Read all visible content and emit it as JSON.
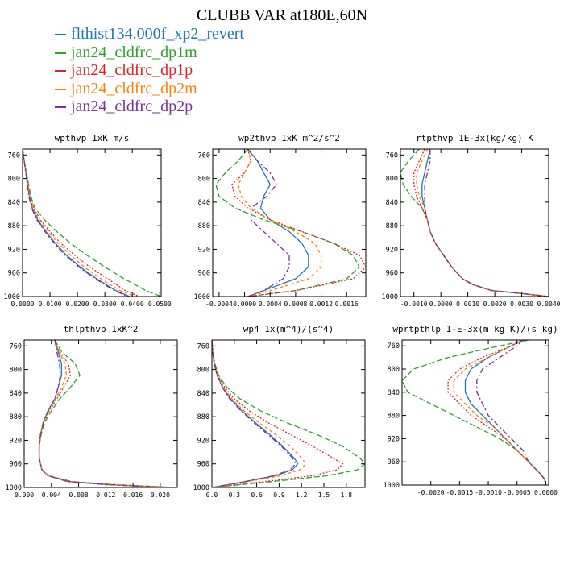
{
  "figure": {
    "title": "CLUBB VAR at180E,60N",
    "legend": [
      {
        "label": "flthist134.000f_xp2_revert",
        "color": "#1f77b4"
      },
      {
        "label": "jan24_cldfrc_dp1m",
        "color": "#2ca02c"
      },
      {
        "label": "jan24_cldfrc_dp1p",
        "color": "#d62728"
      },
      {
        "label": "jan24_cldfrc_dp2m",
        "color": "#ff7f0e"
      },
      {
        "label": "jan24_cldfrc_dp2p",
        "color": "#7b3294"
      }
    ]
  },
  "chart_data": [
    {
      "type": "line",
      "title": "wpthvp  1xK m/s",
      "xlim": [
        0,
        0.0505
      ],
      "ylim": [
        1000,
        750
      ],
      "xticks": [
        0,
        0.01,
        0.02,
        0.03,
        0.04,
        0.05
      ],
      "xtick_labels": [
        "0.0000",
        "0.0100",
        "0.0200",
        "0.0300",
        "0.0400",
        "0.0500"
      ],
      "yticks": [
        760,
        800,
        840,
        880,
        920,
        960,
        1000
      ],
      "ytick_labels": [
        "760",
        "800",
        "840",
        "880",
        "920",
        "960",
        "1000"
      ],
      "y": [
        750,
        770,
        790,
        810,
        830,
        850,
        870,
        890,
        910,
        930,
        950,
        970,
        990,
        1000
      ],
      "series": [
        {
          "values": [
            0,
            0.0006,
            0.0012,
            0.0018,
            0.0025,
            0.0035,
            0.0055,
            0.0085,
            0.012,
            0.016,
            0.021,
            0.027,
            0.034,
            0.039
          ]
        },
        {
          "values": [
            0,
            0.0006,
            0.0014,
            0.0022,
            0.003,
            0.0045,
            0.008,
            0.0125,
            0.0175,
            0.0235,
            0.03,
            0.037,
            0.045,
            0.0505
          ]
        },
        {
          "values": [
            0,
            0.0006,
            0.0013,
            0.002,
            0.0027,
            0.004,
            0.0065,
            0.01,
            0.014,
            0.019,
            0.0245,
            0.031,
            0.0375,
            0.0425
          ]
        },
        {
          "values": [
            0,
            0.0006,
            0.0013,
            0.0019,
            0.0026,
            0.0037,
            0.006,
            0.0093,
            0.013,
            0.0175,
            0.0225,
            0.0285,
            0.0355,
            0.041
          ]
        },
        {
          "values": [
            0,
            0.0006,
            0.0012,
            0.0017,
            0.0023,
            0.0033,
            0.0052,
            0.0082,
            0.0116,
            0.0155,
            0.0205,
            0.0265,
            0.0335,
            0.0385
          ]
        }
      ]
    },
    {
      "type": "line",
      "title": "wp2thvp  1xK m^2/s^2",
      "xlim": [
        -0.0005,
        0.0019
      ],
      "ylim": [
        1000,
        750
      ],
      "xticks": [
        -0.0004,
        0,
        0.0004,
        0.0008,
        0.0012,
        0.0016
      ],
      "xtick_labels": [
        "-0.0004",
        "0.0000",
        "0.0004",
        "0.0008",
        "0.0012",
        "0.0016"
      ],
      "yticks": [
        760,
        800,
        840,
        880,
        920,
        960,
        1000
      ],
      "ytick_labels": [
        "760",
        "800",
        "840",
        "880",
        "920",
        "960",
        "1000"
      ],
      "y": [
        750,
        770,
        790,
        810,
        830,
        850,
        870,
        890,
        910,
        930,
        950,
        970,
        990,
        1000
      ],
      "series": [
        {
          "values": [
            5e-05,
            0.0002,
            0.0003,
            0.0004,
            0.0003,
            0.00025,
            0.0004,
            0.0007,
            0.0009,
            0.001,
            0.001,
            0.0008,
            0.0003,
            5e-05
          ]
        },
        {
          "values": [
            5e-05,
            -0.0001,
            -0.0003,
            -0.00045,
            -0.0004,
            -0.00015,
            0.0003,
            0.0009,
            0.0014,
            0.0017,
            0.0018,
            0.0016,
            0.0008,
            5e-05
          ]
        },
        {
          "values": [
            5e-05,
            0.0001,
            0.0,
            -0.0002,
            -0.00015,
            5e-05,
            0.0004,
            0.0009,
            0.0014,
            0.0018,
            0.0019,
            0.0017,
            0.0008,
            5e-05
          ]
        },
        {
          "values": [
            5e-05,
            0.0001,
            0.0,
            -0.0001,
            -5e-05,
            0.0001,
            0.0004,
            0.0008,
            0.0011,
            0.0012,
            0.0012,
            0.001,
            0.0004,
            5e-05
          ]
        },
        {
          "values": [
            5e-05,
            0.0002,
            0.0004,
            0.0005,
            0.00035,
            0.0001,
            0.0001,
            0.0003,
            0.0005,
            0.0007,
            0.0007,
            0.0006,
            0.0003,
            5e-05
          ]
        }
      ]
    },
    {
      "type": "line",
      "title": "rtpthvp  1E-3x(kg/kg) K",
      "xlim": [
        -0.0015,
        0.004
      ],
      "ylim": [
        1000,
        750
      ],
      "xticks": [
        -0.001,
        0,
        0.001,
        0.002,
        0.003,
        0.004
      ],
      "xtick_labels": [
        "-0.0010",
        "0.0000",
        "0.0010",
        "0.0020",
        "0.0030",
        "0.0040"
      ],
      "yticks": [
        760,
        800,
        840,
        880,
        920,
        960,
        1000
      ],
      "ytick_labels": [
        "760",
        "800",
        "840",
        "880",
        "920",
        "960",
        "1000"
      ],
      "y": [
        750,
        770,
        790,
        810,
        830,
        850,
        870,
        890,
        910,
        930,
        950,
        970,
        980,
        990,
        995,
        1000
      ],
      "series": [
        {
          "values": [
            -0.0004,
            -0.0005,
            -0.0006,
            -0.0007,
            -0.0007,
            -0.0006,
            -0.0005,
            -0.0004,
            -0.0002,
            0.0001,
            0.0004,
            0.0008,
            0.0012,
            0.0019,
            0.003,
            0.004
          ]
        },
        {
          "values": [
            -0.0008,
            -0.0012,
            -0.0015,
            -0.0014,
            -0.0011,
            -0.0007,
            -0.0005,
            -0.0004,
            -0.0002,
            0.0001,
            0.0004,
            0.0008,
            0.0012,
            0.0019,
            0.003,
            0.004
          ]
        },
        {
          "values": [
            -0.0006,
            -0.0008,
            -0.001,
            -0.001,
            -0.0009,
            -0.0007,
            -0.0005,
            -0.0004,
            -0.0002,
            0.0001,
            0.0004,
            0.0008,
            0.0012,
            0.0019,
            0.003,
            0.004
          ]
        },
        {
          "values": [
            -0.0005,
            -0.0007,
            -0.0009,
            -0.0009,
            -0.0008,
            -0.0006,
            -0.0005,
            -0.0004,
            -0.0002,
            0.0001,
            0.0004,
            0.0008,
            0.0012,
            0.0019,
            0.003,
            0.004
          ]
        },
        {
          "values": [
            -0.0004,
            -0.0004,
            -0.0005,
            -0.0006,
            -0.0006,
            -0.0006,
            -0.0005,
            -0.0004,
            -0.0002,
            0.0001,
            0.0004,
            0.0008,
            0.0012,
            0.0019,
            0.003,
            0.004
          ]
        }
      ]
    },
    {
      "type": "line",
      "title": "thlpthvp  1xK^2",
      "xlim": [
        0,
        0.0225
      ],
      "ylim": [
        1000,
        750
      ],
      "xticks": [
        0,
        0.004,
        0.008,
        0.012,
        0.016,
        0.02
      ],
      "xtick_labels": [
        "0.000",
        "0.004",
        "0.008",
        "0.012",
        "0.016",
        "0.020"
      ],
      "yticks": [
        760,
        800,
        840,
        880,
        920,
        960,
        1000
      ],
      "ytick_labels": [
        "760",
        "800",
        "840",
        "880",
        "920",
        "960",
        "1000"
      ],
      "y": [
        750,
        770,
        790,
        810,
        830,
        850,
        870,
        890,
        910,
        930,
        950,
        970,
        980,
        990,
        995,
        1000
      ],
      "series": [
        {
          "values": [
            0.0045,
            0.005,
            0.0055,
            0.0055,
            0.005,
            0.0045,
            0.0035,
            0.0028,
            0.0024,
            0.0022,
            0.0022,
            0.0026,
            0.0035,
            0.0065,
            0.012,
            0.021
          ]
        },
        {
          "values": [
            0.0045,
            0.0055,
            0.0075,
            0.0082,
            0.0068,
            0.0052,
            0.004,
            0.003,
            0.0025,
            0.0022,
            0.0022,
            0.0026,
            0.0035,
            0.007,
            0.013,
            0.022
          ]
        },
        {
          "values": [
            0.0045,
            0.0052,
            0.0065,
            0.0068,
            0.0058,
            0.0048,
            0.0037,
            0.0029,
            0.0024,
            0.0022,
            0.0022,
            0.0026,
            0.0035,
            0.007,
            0.0125,
            0.0215
          ]
        },
        {
          "values": [
            0.0045,
            0.0051,
            0.006,
            0.0062,
            0.0055,
            0.0046,
            0.0036,
            0.0028,
            0.0024,
            0.0022,
            0.0022,
            0.0026,
            0.0035,
            0.0066,
            0.0122,
            0.0212
          ]
        },
        {
          "values": [
            0.0045,
            0.0048,
            0.0052,
            0.0053,
            0.005,
            0.0045,
            0.0035,
            0.0028,
            0.0024,
            0.0022,
            0.0022,
            0.0026,
            0.0035,
            0.0064,
            0.0118,
            0.0208
          ]
        }
      ]
    },
    {
      "type": "line",
      "title": "wp4  1x(m^4)/(s^4)",
      "xlim": [
        0,
        2.05
      ],
      "ylim": [
        1000,
        750
      ],
      "xticks": [
        0,
        0.3,
        0.6,
        0.9,
        1.2,
        1.5,
        1.8
      ],
      "xtick_labels": [
        "0.0",
        "0.3",
        "0.6",
        "0.9",
        "1.2",
        "1.5",
        "1.8"
      ],
      "yticks": [
        760,
        800,
        840,
        880,
        920,
        960,
        1000
      ],
      "ytick_labels": [
        "760",
        "800",
        "840",
        "880",
        "920",
        "960",
        "1000"
      ],
      "y": [
        750,
        770,
        790,
        810,
        830,
        850,
        870,
        890,
        910,
        930,
        950,
        960,
        970,
        980,
        990,
        1000
      ],
      "series": [
        {
          "values": [
            0.0,
            0.01,
            0.03,
            0.07,
            0.14,
            0.25,
            0.4,
            0.58,
            0.77,
            0.95,
            1.1,
            1.15,
            1.08,
            0.85,
            0.45,
            0.0
          ]
        },
        {
          "values": [
            0.0,
            0.01,
            0.04,
            0.09,
            0.2,
            0.38,
            0.65,
            1.0,
            1.4,
            1.75,
            1.98,
            2.05,
            1.95,
            1.55,
            0.8,
            0.0
          ]
        },
        {
          "values": [
            0.0,
            0.01,
            0.035,
            0.08,
            0.17,
            0.3,
            0.5,
            0.75,
            1.05,
            1.35,
            1.62,
            1.75,
            1.68,
            1.35,
            0.7,
            0.0
          ]
        },
        {
          "values": [
            0.0,
            0.01,
            0.03,
            0.075,
            0.15,
            0.27,
            0.43,
            0.63,
            0.85,
            1.05,
            1.2,
            1.26,
            1.18,
            0.92,
            0.48,
            0.0
          ]
        },
        {
          "values": [
            0.0,
            0.01,
            0.03,
            0.07,
            0.14,
            0.24,
            0.39,
            0.56,
            0.75,
            0.93,
            1.08,
            1.12,
            1.05,
            0.83,
            0.44,
            0.0
          ]
        }
      ]
    },
    {
      "type": "line",
      "title": "wprtpthlp  1-E-3x(m kg K)/(s kg)",
      "xlim": [
        -0.0025,
        5e-05
      ],
      "ylim": [
        1000,
        750
      ],
      "xticks": [
        -0.002,
        -0.0015,
        -0.001,
        -0.0005,
        0
      ],
      "xtick_labels": [
        "-0.0020",
        "-0.0015",
        "-0.0010",
        "-0.0005",
        "0.0000"
      ],
      "yticks": [
        760,
        800,
        840,
        880,
        920,
        960,
        1000
      ],
      "ytick_labels": [
        "760",
        "800",
        "840",
        "880",
        "920",
        "960",
        "1000"
      ],
      "y": [
        750,
        760,
        780,
        800,
        820,
        840,
        860,
        880,
        900,
        920,
        940,
        960,
        980,
        990,
        1000
      ],
      "series": [
        {
          "values": [
            -0.0004,
            -0.0006,
            -0.001,
            -0.0013,
            -0.0014,
            -0.0014,
            -0.0013,
            -0.0011,
            -0.0009,
            -0.0007,
            -0.0005,
            -0.0003,
            -0.0001,
            -2e-05,
            0.0
          ]
        },
        {
          "values": [
            -0.0003,
            -0.0008,
            -0.0017,
            -0.0023,
            -0.0025,
            -0.0024,
            -0.002,
            -0.0016,
            -0.0012,
            -0.0008,
            -0.0005,
            -0.0003,
            -0.0001,
            -2e-05,
            0.0
          ]
        },
        {
          "values": [
            -0.0004,
            -0.0006,
            -0.0011,
            -0.0015,
            -0.0017,
            -0.0017,
            -0.0015,
            -0.0013,
            -0.001,
            -0.0007,
            -0.0005,
            -0.0003,
            -0.0001,
            -2e-05,
            0.0
          ]
        },
        {
          "values": [
            -0.0004,
            -0.0006,
            -0.001,
            -0.0014,
            -0.0016,
            -0.0016,
            -0.0014,
            -0.0012,
            -0.0009,
            -0.0007,
            -0.0005,
            -0.0003,
            -0.0001,
            -2e-05,
            0.0
          ]
        },
        {
          "values": [
            -0.0004,
            -0.0005,
            -0.0008,
            -0.0011,
            -0.0012,
            -0.0012,
            -0.0011,
            -0.001,
            -0.0008,
            -0.0006,
            -0.0004,
            -0.0003,
            -0.0001,
            -2e-05,
            0.0
          ]
        }
      ]
    }
  ]
}
